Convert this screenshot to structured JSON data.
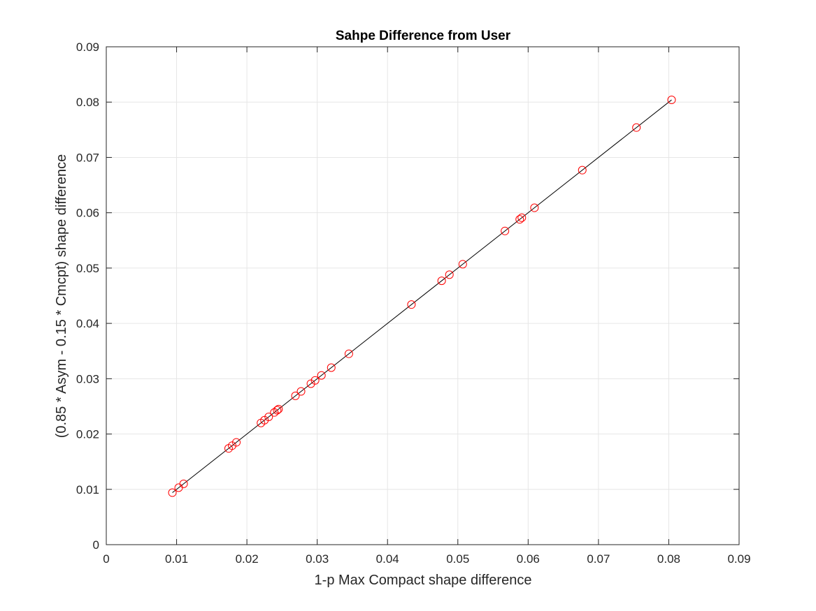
{
  "chart_data": {
    "type": "scatter",
    "title": "Sahpe Difference from User",
    "xlabel": "1-p Max Compact shape difference",
    "ylabel": "(0.85 * Asym - 0.15 * Cmcpt) shape difference",
    "xlim": [
      0,
      0.09
    ],
    "ylim": [
      0,
      0.09
    ],
    "grid": true,
    "box": true,
    "xticks": [
      "0",
      "0.01",
      "0.02",
      "0.03",
      "0.04",
      "0.05",
      "0.06",
      "0.07",
      "0.08",
      "0.09"
    ],
    "yticks": [
      "0",
      "0.01",
      "0.02",
      "0.03",
      "0.04",
      "0.05",
      "0.06",
      "0.07",
      "0.08",
      "0.09"
    ],
    "tick_values": [
      0,
      0.01,
      0.02,
      0.03,
      0.04,
      0.05,
      0.06,
      0.07,
      0.08,
      0.09
    ],
    "series": [
      {
        "style": "markers",
        "marker": "circle",
        "color": "#ff0000",
        "x": [
          0.0094,
          0.0103,
          0.011,
          0.0174,
          0.0179,
          0.0185,
          0.022,
          0.0225,
          0.0231,
          0.0239,
          0.0243,
          0.0245,
          0.0269,
          0.0277,
          0.0291,
          0.0297,
          0.0306,
          0.032,
          0.0345,
          0.0434,
          0.0477,
          0.0488,
          0.0507,
          0.0567,
          0.0588,
          0.0591,
          0.0609,
          0.0677,
          0.0754,
          0.0804
        ],
        "y": [
          0.0094,
          0.0103,
          0.011,
          0.0174,
          0.0179,
          0.0185,
          0.022,
          0.0225,
          0.0231,
          0.0239,
          0.0243,
          0.0245,
          0.0269,
          0.0277,
          0.0291,
          0.0297,
          0.0306,
          0.032,
          0.0345,
          0.0434,
          0.0477,
          0.0488,
          0.0507,
          0.0567,
          0.0588,
          0.0591,
          0.0609,
          0.0677,
          0.0754,
          0.0804
        ]
      },
      {
        "style": "line",
        "color": "#000000",
        "x": [
          0.0094,
          0.0804
        ],
        "y": [
          0.0094,
          0.0804
        ]
      }
    ]
  }
}
